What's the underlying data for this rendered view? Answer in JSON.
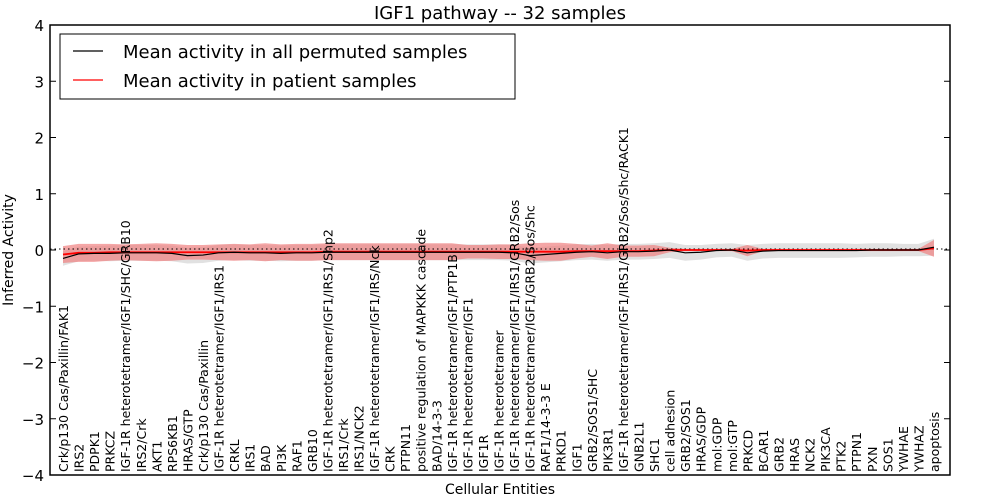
{
  "chart_data": {
    "type": "line",
    "title": "IGF1 pathway -- 32 samples",
    "xlabel": "Cellular Entities",
    "ylabel": "Inferred Activity",
    "ylim": [
      -4,
      4
    ],
    "yticks": [
      "4",
      "3",
      "2",
      "1",
      "0",
      "−1",
      "−2",
      "−3",
      "−4"
    ],
    "ytick_values": [
      4,
      3,
      2,
      1,
      0,
      -1,
      -2,
      -3,
      -4
    ],
    "legend_placement": "upper-left",
    "categories": [
      "Crk/p130 Cas/Paxillin/FAK1",
      "IRS2",
      "PDPK1",
      "PRKCZ",
      "IGF-1R heterotetramer/IGF1/SHC/GRB10",
      "IRS2/Crk",
      "AKT1",
      "RPS6KB1",
      "HRAS/GTP",
      "Crk/p130 Cas/Paxillin",
      "IGF-1R heterotetramer/IGF1/IRS1",
      "CRKL",
      "IRS1",
      "BAD",
      "PI3K",
      "RAF1",
      "GRB10",
      "IGF-1R heterotetramer/IGF1/IRS1/Shp2",
      "IRS1/Crk",
      "IRS1/NCK2",
      "IGF-1R heterotetramer/IGF1/IRS/Nck",
      "CRK",
      "PTPN11",
      "positive regulation of MAPKKK cascade",
      "BAD/14-3-3",
      "IGF-1R heterotetramer/IGF1/PTP1B",
      "IGF-1R heterotetramer/IGF1",
      "IGF1R",
      "IGF-1R heterotetramer",
      "IGF-1R heterotetramer/IGF1/IRS1/GRB2/Sos",
      "IGF-1R heterotetramer/IGF1/GRB2/Sos/Shc",
      "RAF1/14-3-3 E",
      "PRKD1",
      "IGF1",
      "GRB2/SOS1/SHC",
      "PIK3R1",
      "IGF-1R heterotetramer/IGF1/IRS1/GRB2/Sos/Shc/RACK1",
      "GNB2L1",
      "SHC1",
      "cell adhesion",
      "GRB2/SOS1",
      "HRAS/GDP",
      "mol:GDP",
      "mol:GTP",
      "PRKCD",
      "BCAR1",
      "GRB2",
      "HRAS",
      "NCK2",
      "PIK3CA",
      "PTK2",
      "PTPN1",
      "PXN",
      "SOS1",
      "YWHAE",
      "YWHAZ",
      "apoptosis"
    ],
    "series": [
      {
        "name": "Mean activity in all permuted samples",
        "color": "#000000",
        "band_color": "#d9d9d9",
        "values": [
          -0.15,
          -0.07,
          -0.06,
          -0.06,
          -0.05,
          -0.05,
          -0.05,
          -0.06,
          -0.1,
          -0.09,
          -0.05,
          -0.04,
          -0.05,
          -0.05,
          -0.06,
          -0.05,
          -0.05,
          -0.04,
          -0.04,
          -0.04,
          -0.04,
          -0.04,
          -0.04,
          -0.04,
          -0.04,
          -0.04,
          -0.04,
          -0.04,
          -0.04,
          -0.05,
          -0.1,
          -0.08,
          -0.06,
          -0.04,
          -0.03,
          -0.05,
          -0.03,
          -0.03,
          -0.02,
          0.0,
          -0.05,
          -0.04,
          -0.01,
          0.0,
          -0.05,
          -0.02,
          -0.01,
          -0.01,
          -0.01,
          -0.01,
          -0.01,
          -0.01,
          0.0,
          0.0,
          0.0,
          0.0,
          0.05
        ],
        "band_halfwidth": [
          0.13,
          0.13,
          0.13,
          0.14,
          0.14,
          0.14,
          0.14,
          0.14,
          0.14,
          0.14,
          0.14,
          0.14,
          0.14,
          0.14,
          0.14,
          0.14,
          0.14,
          0.14,
          0.14,
          0.14,
          0.14,
          0.14,
          0.14,
          0.14,
          0.14,
          0.14,
          0.14,
          0.14,
          0.14,
          0.14,
          0.14,
          0.14,
          0.14,
          0.14,
          0.14,
          0.14,
          0.14,
          0.14,
          0.14,
          0.14,
          0.14,
          0.13,
          0.12,
          0.12,
          0.14,
          0.13,
          0.13,
          0.13,
          0.13,
          0.13,
          0.13,
          0.12,
          0.12,
          0.12,
          0.11,
          0.11,
          0.15
        ]
      },
      {
        "name": "Mean activity in patient samples",
        "color": "#ff0000",
        "band_color": "#f08080",
        "values": [
          -0.08,
          -0.05,
          -0.05,
          -0.04,
          -0.04,
          -0.04,
          -0.04,
          -0.04,
          -0.04,
          -0.04,
          -0.04,
          -0.04,
          -0.04,
          -0.04,
          -0.04,
          -0.04,
          -0.04,
          -0.03,
          -0.03,
          -0.03,
          -0.03,
          -0.03,
          -0.03,
          -0.03,
          -0.03,
          -0.03,
          -0.03,
          -0.03,
          -0.03,
          -0.03,
          -0.03,
          -0.03,
          -0.03,
          -0.02,
          -0.02,
          -0.02,
          -0.02,
          -0.02,
          -0.01,
          0.0,
          0.0,
          0.0,
          0.0,
          0.0,
          -0.01,
          0.0,
          0.0,
          0.0,
          0.0,
          0.0,
          0.0,
          0.0,
          0.0,
          0.0,
          0.0,
          0.0,
          0.03
        ],
        "band_halfwidth": [
          0.15,
          0.16,
          0.16,
          0.15,
          0.14,
          0.15,
          0.16,
          0.15,
          0.13,
          0.13,
          0.14,
          0.15,
          0.14,
          0.16,
          0.14,
          0.15,
          0.15,
          0.15,
          0.15,
          0.15,
          0.15,
          0.15,
          0.15,
          0.15,
          0.15,
          0.15,
          0.12,
          0.12,
          0.13,
          0.13,
          0.15,
          0.16,
          0.16,
          0.13,
          0.1,
          0.14,
          0.1,
          0.1,
          0.1,
          0.04,
          0.02,
          0.02,
          0.02,
          0.02,
          0.1,
          0.02,
          0.02,
          0.02,
          0.02,
          0.02,
          0.02,
          0.02,
          0.02,
          0.02,
          0.02,
          0.02,
          0.15
        ]
      }
    ]
  }
}
